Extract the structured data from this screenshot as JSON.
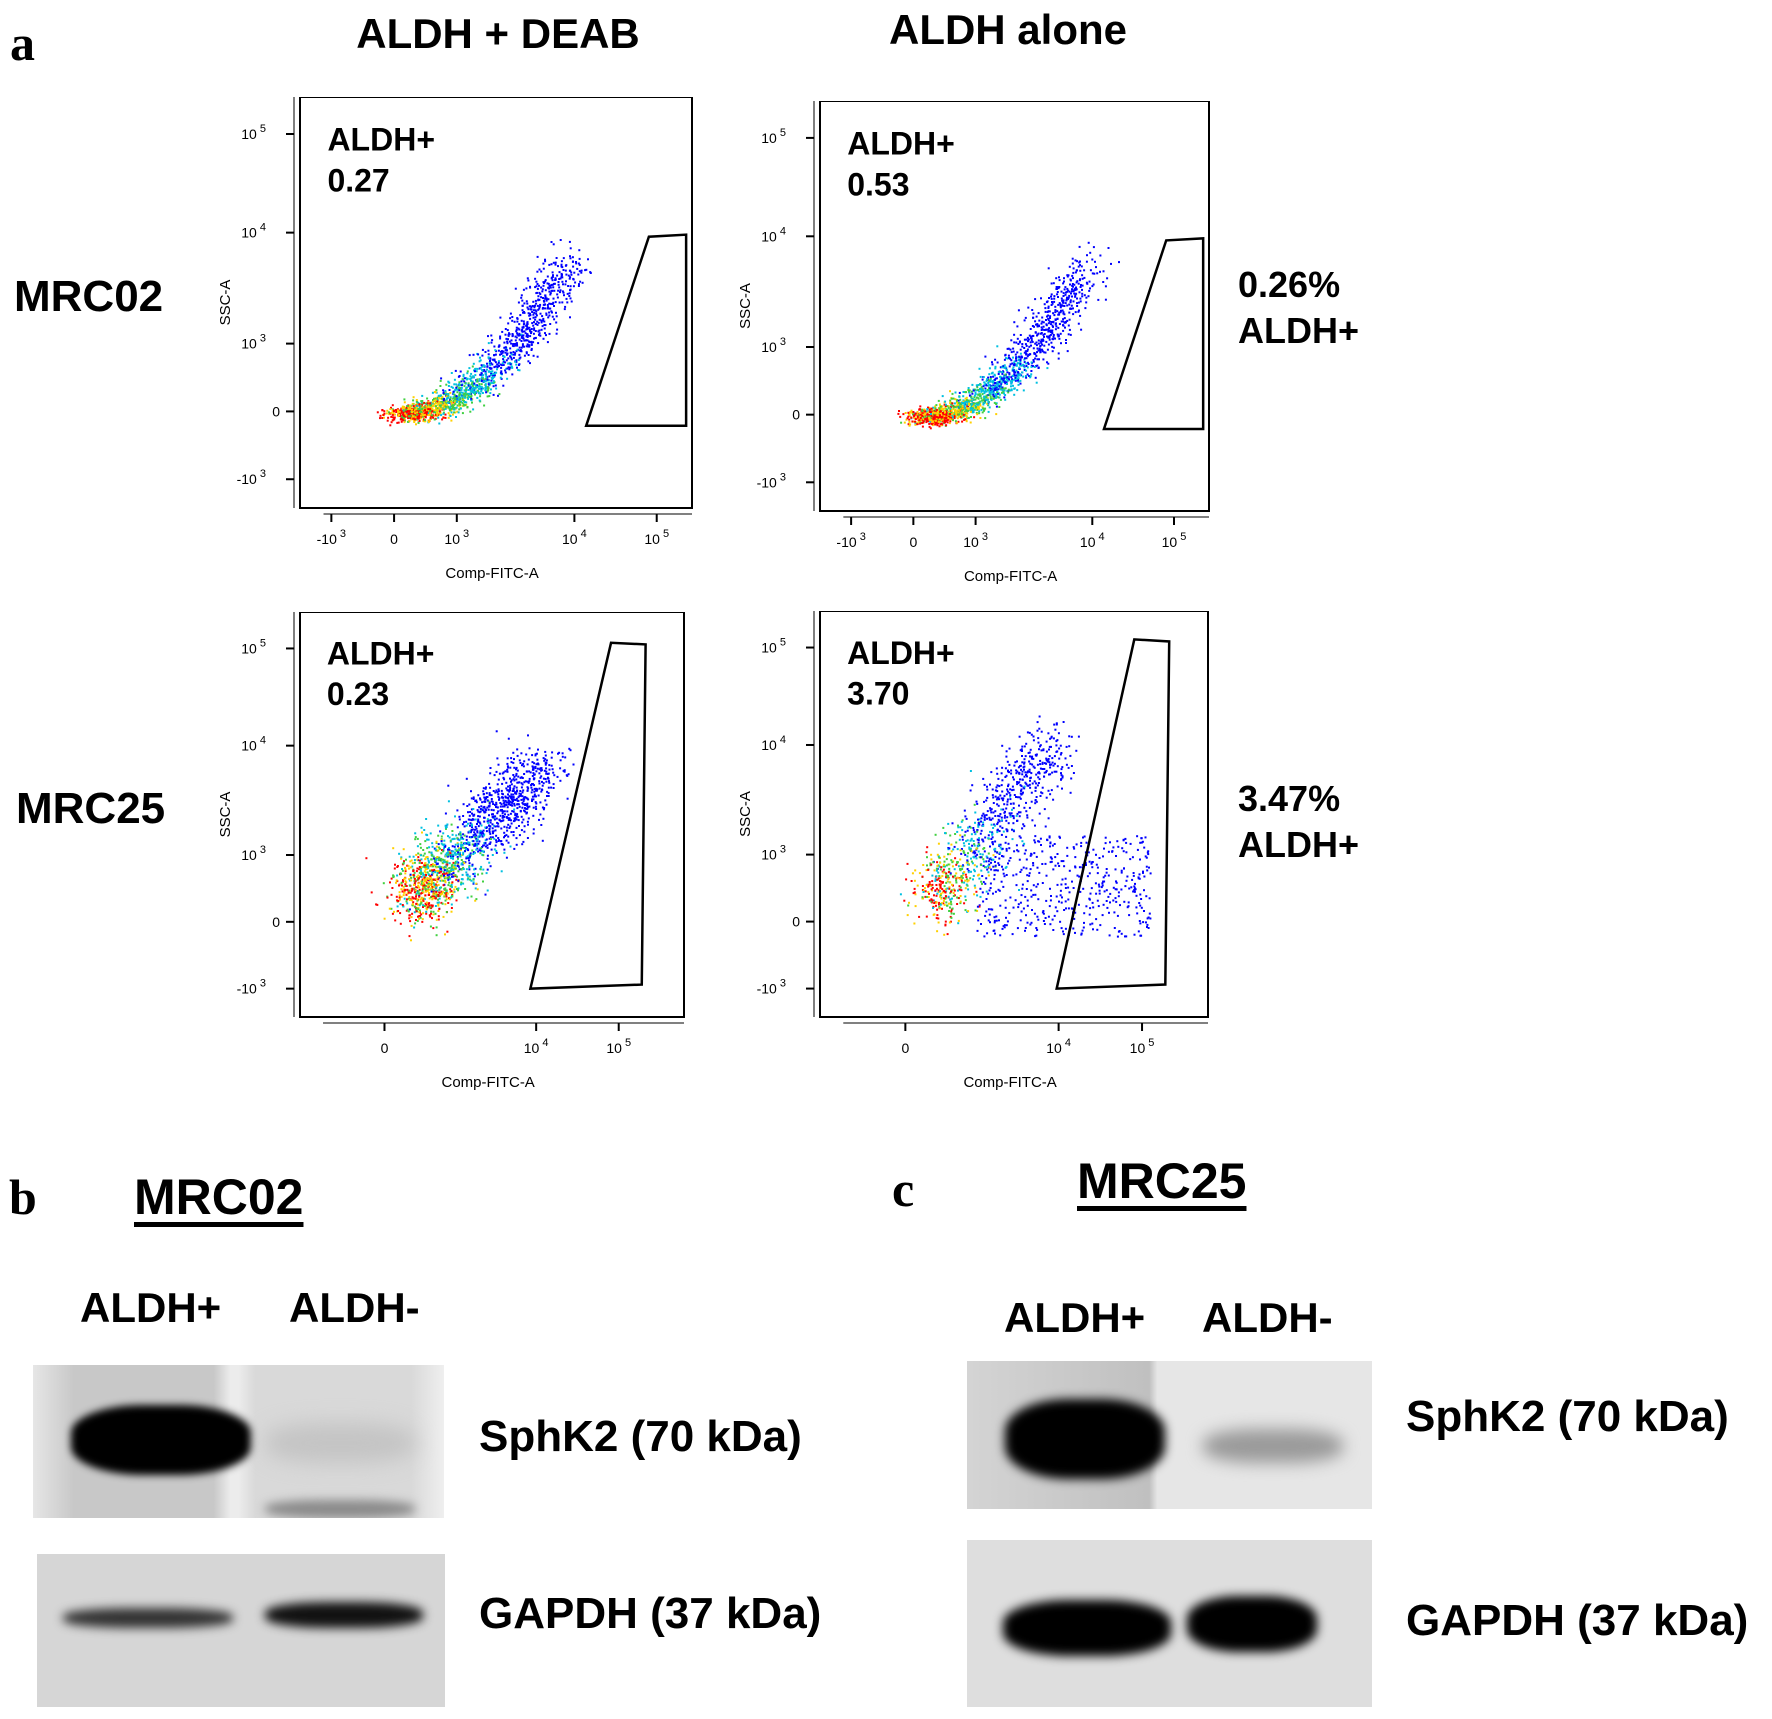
{
  "panel_labels": {
    "a": "a",
    "b": "b",
    "c": "c"
  },
  "column_titles": [
    "ALDH + DEAB",
    "ALDH alone"
  ],
  "row_labels": [
    "MRC02",
    "MRC25"
  ],
  "summary": [
    {
      "value": "0.26%",
      "label": "ALDH+"
    },
    {
      "value": "3.47%",
      "label": "ALDH+"
    }
  ],
  "chart_data": [
    {
      "type": "scatter",
      "subtype": "flow-cytometry density plot",
      "row": "MRC02",
      "condition": "ALDH + DEAB",
      "gate_name": "ALDH+",
      "gate_value": "0.27",
      "xlabel": "Comp-FITC-A",
      "ylabel": "SSC-A",
      "xticks": [
        "-10^3",
        "0",
        "10^3",
        "10^4",
        "10^5"
      ],
      "yticks": [
        "10^5",
        "10^4",
        "10^3",
        "0",
        "-10^3"
      ],
      "scale": "biexponential"
    },
    {
      "type": "scatter",
      "subtype": "flow-cytometry density plot",
      "row": "MRC02",
      "condition": "ALDH alone",
      "gate_name": "ALDH+",
      "gate_value": "0.53",
      "xlabel": "Comp-FITC-A",
      "ylabel": "SSC-A",
      "xticks": [
        "-10^3",
        "0",
        "10^3",
        "10^4",
        "10^5"
      ],
      "yticks": [
        "10^5",
        "10^4",
        "10^3",
        "0",
        "-10^3"
      ],
      "scale": "biexponential"
    },
    {
      "type": "scatter",
      "subtype": "flow-cytometry density plot",
      "row": "MRC25",
      "condition": "ALDH + DEAB",
      "gate_name": "ALDH+",
      "gate_value": "0.23",
      "xlabel": "Comp-FITC-A",
      "ylabel": "SSC-A",
      "xticks": [
        "0",
        "10^4",
        "10^5"
      ],
      "yticks": [
        "10^5",
        "10^4",
        "10^3",
        "0",
        "-10^3"
      ],
      "scale": "biexponential"
    },
    {
      "type": "scatter",
      "subtype": "flow-cytometry density plot",
      "row": "MRC25",
      "condition": "ALDH alone",
      "gate_name": "ALDH+",
      "gate_value": "3.70",
      "xlabel": "Comp-FITC-A",
      "ylabel": "SSC-A",
      "xticks": [
        "0",
        "10^4",
        "10^5"
      ],
      "yticks": [
        "10^5",
        "10^4",
        "10^3",
        "0",
        "-10^3"
      ],
      "scale": "biexponential"
    }
  ],
  "blots": [
    {
      "title": "MRC02",
      "lanes": [
        "ALDH+",
        "ALDH-"
      ],
      "rows": [
        "SphK2 (70 kDa)",
        "GAPDH (37 kDa)"
      ]
    },
    {
      "title": "MRC25",
      "lanes": [
        "ALDH+",
        "ALDH-"
      ],
      "rows": [
        "SphK2 (70 kDa)",
        "GAPDH (37 kDa)"
      ]
    }
  ],
  "colors": {
    "density_low": "#0000ff",
    "density_mid": "#00c000",
    "density_high": "#ff0000",
    "gate": "#000000"
  }
}
